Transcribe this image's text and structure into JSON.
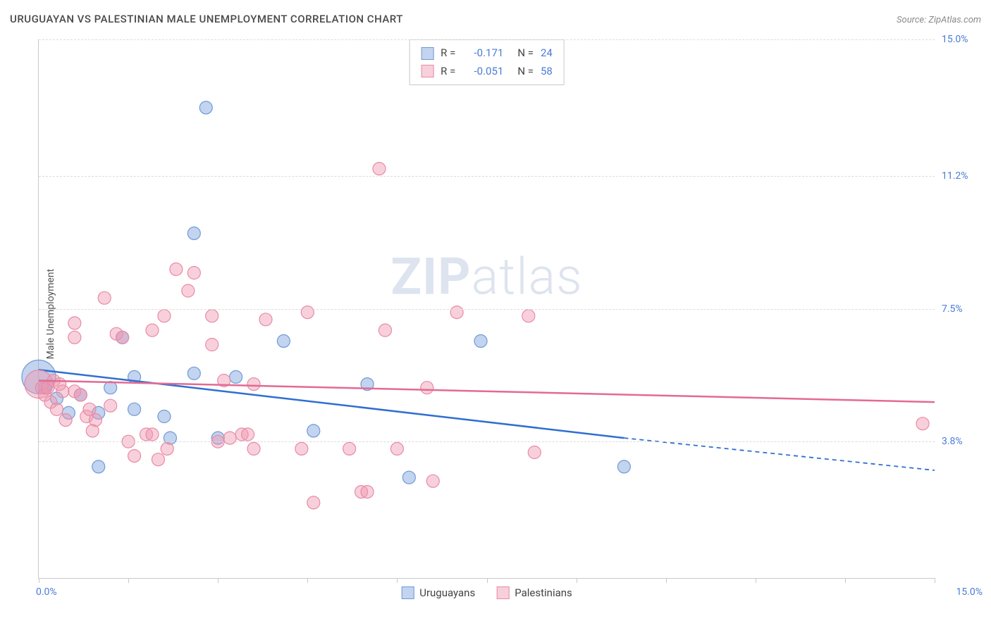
{
  "title": "URUGUAYAN VS PALESTINIAN MALE UNEMPLOYMENT CORRELATION CHART",
  "source": "Source: ZipAtlas.com",
  "ylabel": "Male Unemployment",
  "watermark_bold": "ZIP",
  "watermark_rest": "atlas",
  "chart": {
    "type": "scatter",
    "xlim": [
      0,
      15
    ],
    "ylim": [
      0,
      15
    ],
    "x_min_label": "0.0%",
    "x_max_label": "15.0%",
    "y_ticks": [
      {
        "v": 3.8,
        "label": "3.8%"
      },
      {
        "v": 7.5,
        "label": "7.5%"
      },
      {
        "v": 11.2,
        "label": "11.2%"
      },
      {
        "v": 15.0,
        "label": "15.0%"
      }
    ],
    "x_tick_positions": [
      0,
      1.5,
      3.0,
      4.5,
      6.0,
      7.5,
      9.0,
      10.5,
      12.0,
      13.5,
      15.0
    ],
    "background_color": "#ffffff",
    "grid_color": "#dcdcdc",
    "axis_color": "#c9c9c9",
    "tick_label_color": "#4a7cd4",
    "series": [
      {
        "key": "uruguayans",
        "label": "Uruguayans",
        "fill": "rgba(120,160,220,0.45)",
        "stroke": "#6f9ad6",
        "line_color": "#2f6fd0",
        "marker_r": 9,
        "R_label": "R =",
        "R_value": "-0.171",
        "N_label": "N =",
        "N_value": "24",
        "trend": {
          "x1": 0,
          "y1": 5.8,
          "x2": 9.8,
          "y2": 3.9,
          "dash_to_x": 15,
          "dash_to_y": 3.0
        },
        "points": [
          [
            0.0,
            5.6,
            24
          ],
          [
            0.1,
            5.3
          ],
          [
            0.3,
            5.0
          ],
          [
            0.5,
            4.6
          ],
          [
            0.7,
            5.1
          ],
          [
            1.0,
            4.6
          ],
          [
            1.0,
            3.1
          ],
          [
            1.2,
            5.3
          ],
          [
            1.4,
            6.7
          ],
          [
            1.6,
            4.7
          ],
          [
            1.6,
            5.6
          ],
          [
            2.1,
            4.5
          ],
          [
            2.2,
            3.9
          ],
          [
            2.6,
            5.7
          ],
          [
            2.6,
            9.6
          ],
          [
            2.8,
            13.1
          ],
          [
            3.0,
            3.9
          ],
          [
            3.3,
            5.6
          ],
          [
            4.1,
            6.6
          ],
          [
            4.6,
            4.1
          ],
          [
            5.5,
            5.4
          ],
          [
            6.2,
            2.8
          ],
          [
            7.4,
            6.6
          ],
          [
            9.8,
            3.1
          ]
        ]
      },
      {
        "key": "palestinians",
        "label": "Palestinians",
        "fill": "rgba(240,150,175,0.45)",
        "stroke": "#e88aa6",
        "line_color": "#e36a92",
        "marker_r": 9,
        "R_label": "R =",
        "R_value": "-0.051",
        "N_label": "N =",
        "N_value": "58",
        "trend": {
          "x1": 0,
          "y1": 5.5,
          "x2": 15,
          "y2": 4.9
        },
        "points": [
          [
            0.0,
            5.4,
            20
          ],
          [
            0.05,
            5.3
          ],
          [
            0.1,
            5.1
          ],
          [
            0.15,
            5.3
          ],
          [
            0.2,
            4.9
          ],
          [
            0.25,
            5.5
          ],
          [
            0.3,
            4.7
          ],
          [
            0.35,
            5.4
          ],
          [
            0.4,
            5.2
          ],
          [
            0.45,
            4.4
          ],
          [
            0.6,
            7.1
          ],
          [
            0.6,
            5.2
          ],
          [
            0.6,
            6.7
          ],
          [
            0.7,
            5.1
          ],
          [
            0.8,
            4.5
          ],
          [
            0.85,
            4.7
          ],
          [
            0.9,
            4.1
          ],
          [
            0.95,
            4.4
          ],
          [
            1.1,
            7.8
          ],
          [
            1.2,
            4.8
          ],
          [
            1.3,
            6.8
          ],
          [
            1.4,
            6.7
          ],
          [
            1.5,
            3.8
          ],
          [
            1.6,
            3.4
          ],
          [
            1.8,
            4.0
          ],
          [
            1.9,
            6.9
          ],
          [
            1.9,
            4.0
          ],
          [
            2.0,
            3.3
          ],
          [
            2.1,
            7.3
          ],
          [
            2.15,
            3.6
          ],
          [
            2.3,
            8.6
          ],
          [
            2.5,
            8.0
          ],
          [
            2.6,
            8.5
          ],
          [
            2.9,
            6.5
          ],
          [
            2.9,
            7.3
          ],
          [
            3.0,
            3.8
          ],
          [
            3.1,
            5.5
          ],
          [
            3.2,
            3.9
          ],
          [
            3.4,
            4.0
          ],
          [
            3.5,
            4.0
          ],
          [
            3.6,
            3.6
          ],
          [
            3.6,
            5.4
          ],
          [
            3.8,
            7.2
          ],
          [
            4.4,
            3.6
          ],
          [
            4.5,
            7.4
          ],
          [
            4.6,
            2.1
          ],
          [
            5.2,
            3.6
          ],
          [
            5.4,
            2.4
          ],
          [
            5.5,
            2.4
          ],
          [
            5.7,
            11.4
          ],
          [
            5.8,
            6.9
          ],
          [
            6.0,
            3.6
          ],
          [
            6.5,
            5.3
          ],
          [
            6.6,
            2.7
          ],
          [
            7.0,
            7.4
          ],
          [
            8.2,
            7.3
          ],
          [
            8.3,
            3.5
          ],
          [
            14.8,
            4.3
          ]
        ]
      }
    ]
  },
  "bottom_legend": [
    {
      "label": "Uruguayans",
      "fill": "rgba(120,160,220,0.45)",
      "stroke": "#6f9ad6"
    },
    {
      "label": "Palestinians",
      "fill": "rgba(240,150,175,0.45)",
      "stroke": "#e88aa6"
    }
  ]
}
